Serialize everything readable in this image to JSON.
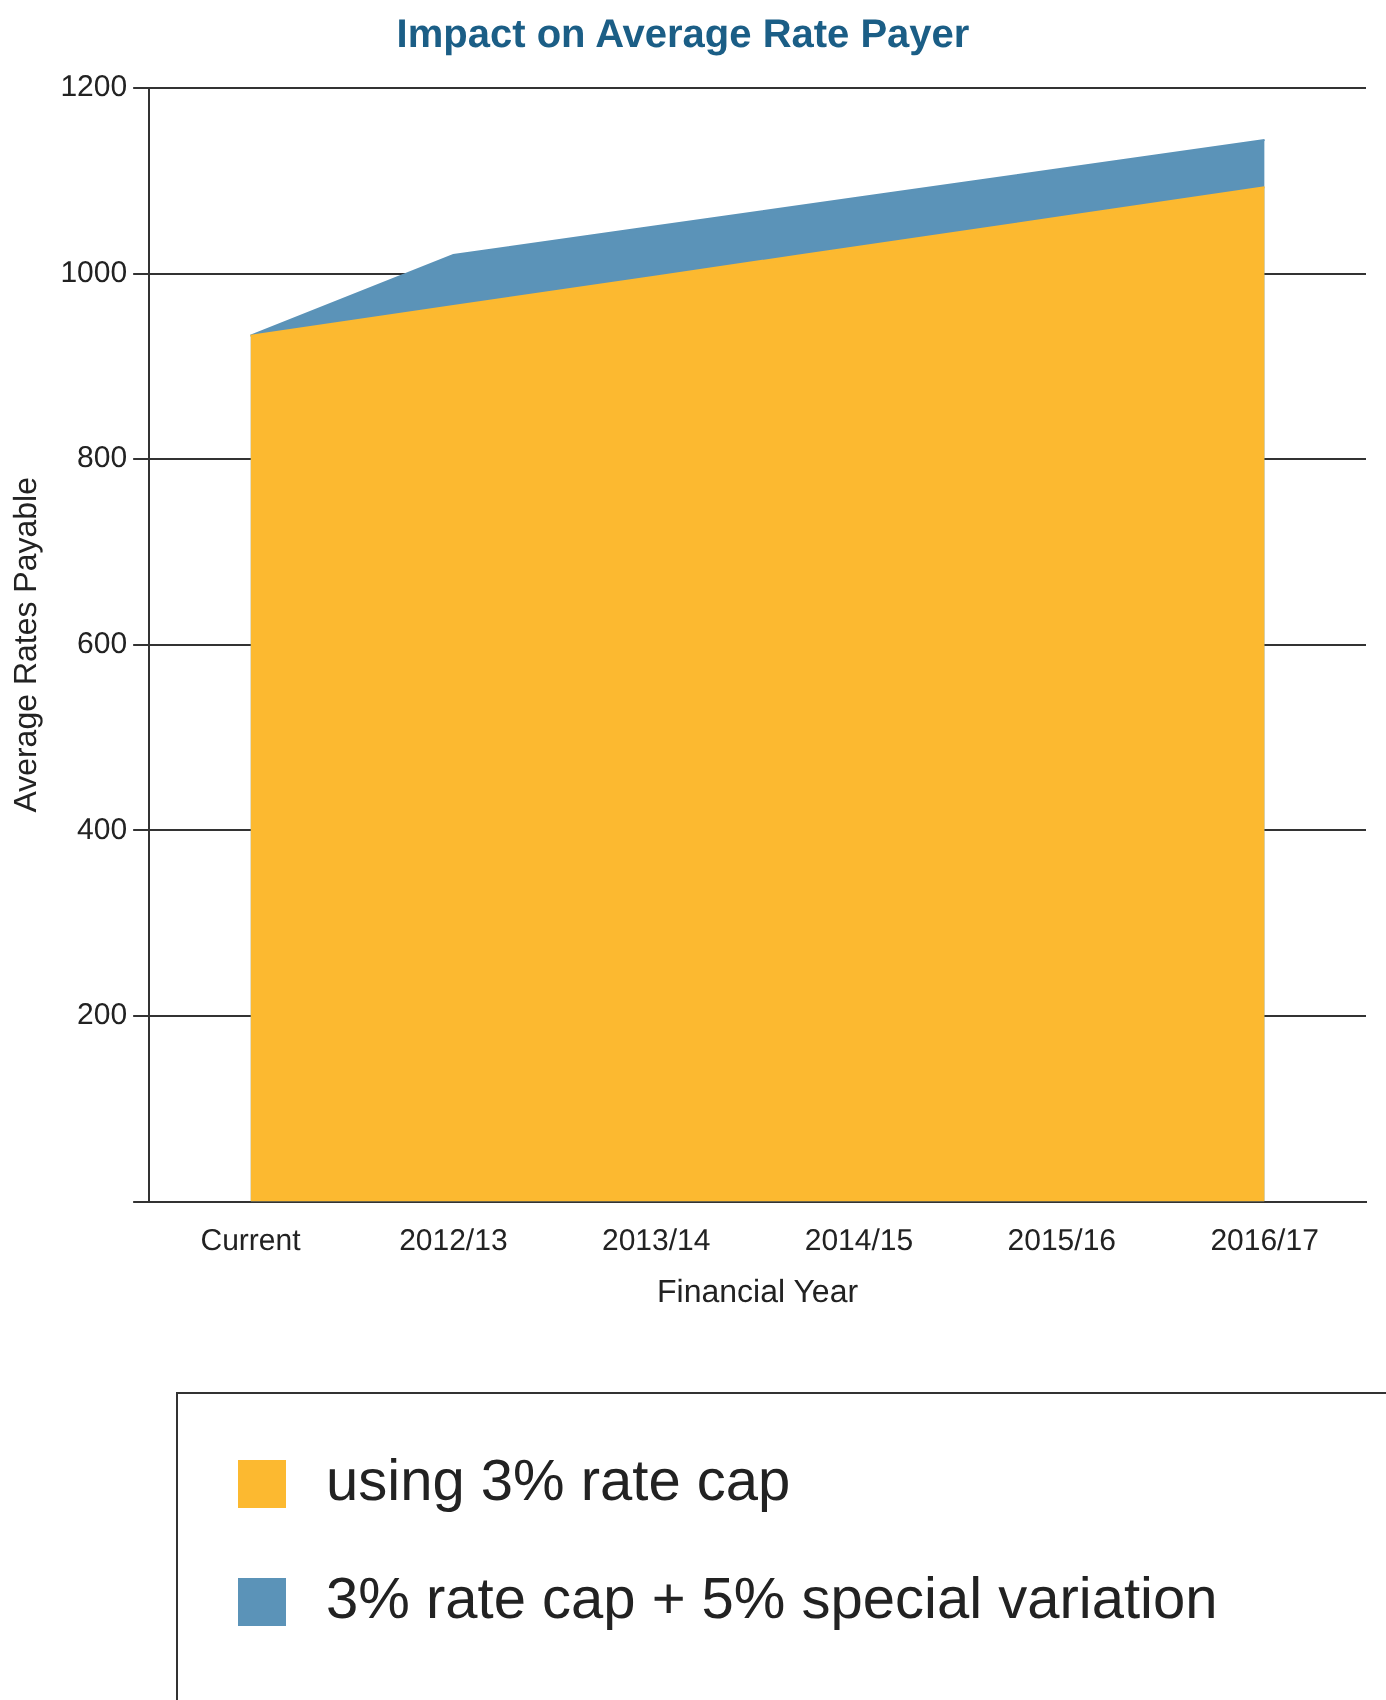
{
  "chart_data": {
    "type": "area",
    "title": "Impact on Average Rate Payer",
    "xlabel": "Financial Year",
    "ylabel": "Average Rates Payable",
    "categories": [
      "Current",
      "2012/13",
      "2013/14",
      "2014/15",
      "2015/16",
      "2016/17"
    ],
    "series": [
      {
        "name": "using 3% rate cap",
        "color": "#fcb930",
        "values": [
          933,
          965,
          997,
          1029,
          1061,
          1093
        ]
      },
      {
        "name": "3% rate cap + 5% special variation",
        "color": "#5b93b8",
        "values": [
          933,
          1020,
          1051,
          1082,
          1113,
          1144
        ]
      }
    ],
    "ylim": [
      0,
      1200
    ],
    "yticks": [
      {
        "value": 0,
        "label": null
      },
      200,
      400,
      600,
      800,
      1000,
      1200
    ],
    "grid": "y",
    "legend": "bottom"
  }
}
